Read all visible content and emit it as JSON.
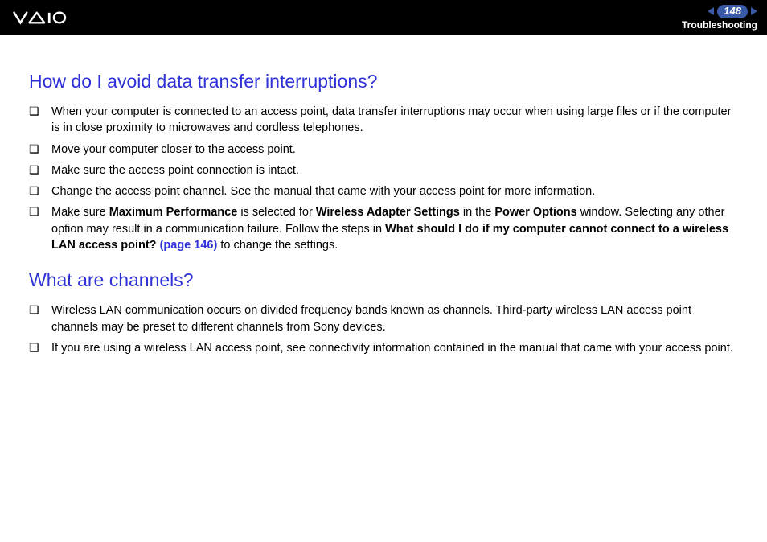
{
  "header": {
    "page_number": "148",
    "section": "Troubleshooting"
  },
  "sections": [
    {
      "heading": "How do I avoid data transfer interruptions?",
      "items": [
        {
          "parts": [
            {
              "text": "When your computer is connected to an access point, data transfer interruptions may occur when using large files or if the computer is in close proximity to microwaves and cordless telephones."
            }
          ]
        },
        {
          "parts": [
            {
              "text": "Move your computer closer to the access point."
            }
          ]
        },
        {
          "parts": [
            {
              "text": "Make sure the access point connection is intact."
            }
          ]
        },
        {
          "parts": [
            {
              "text": "Change the access point channel. See the manual that came with your access point for more information."
            }
          ]
        },
        {
          "parts": [
            {
              "text": "Make sure "
            },
            {
              "text": "Maximum Performance",
              "bold": true
            },
            {
              "text": " is selected for "
            },
            {
              "text": "Wireless Adapter Settings",
              "bold": true
            },
            {
              "text": " in the "
            },
            {
              "text": "Power Options",
              "bold": true
            },
            {
              "text": " window. Selecting any other option may result in a communication failure. Follow the steps in "
            },
            {
              "text": "What should I do if my computer cannot connect to a wireless LAN access point? ",
              "bold": true
            },
            {
              "text": "(page 146)",
              "link": true
            },
            {
              "text": " to change the settings."
            }
          ]
        }
      ]
    },
    {
      "heading": "What are channels?",
      "items": [
        {
          "parts": [
            {
              "text": "Wireless LAN communication occurs on divided frequency bands known as channels. Third-party wireless LAN access point channels may be preset to different channels from Sony devices."
            }
          ]
        },
        {
          "parts": [
            {
              "text": "If you are using a wireless LAN access point, see connectivity information contained in the manual that came with your access point."
            }
          ]
        }
      ]
    }
  ],
  "colors": {
    "heading": "#2e32d6",
    "link": "#2e32d6",
    "header_bg": "#000000",
    "page_badge_bg": "#3a5aa8",
    "text": "#000000",
    "background": "#ffffff"
  },
  "typography": {
    "heading_fontsize": 23,
    "body_fontsize": 14.5,
    "section_label_fontsize": 12,
    "page_number_fontsize": 13
  }
}
